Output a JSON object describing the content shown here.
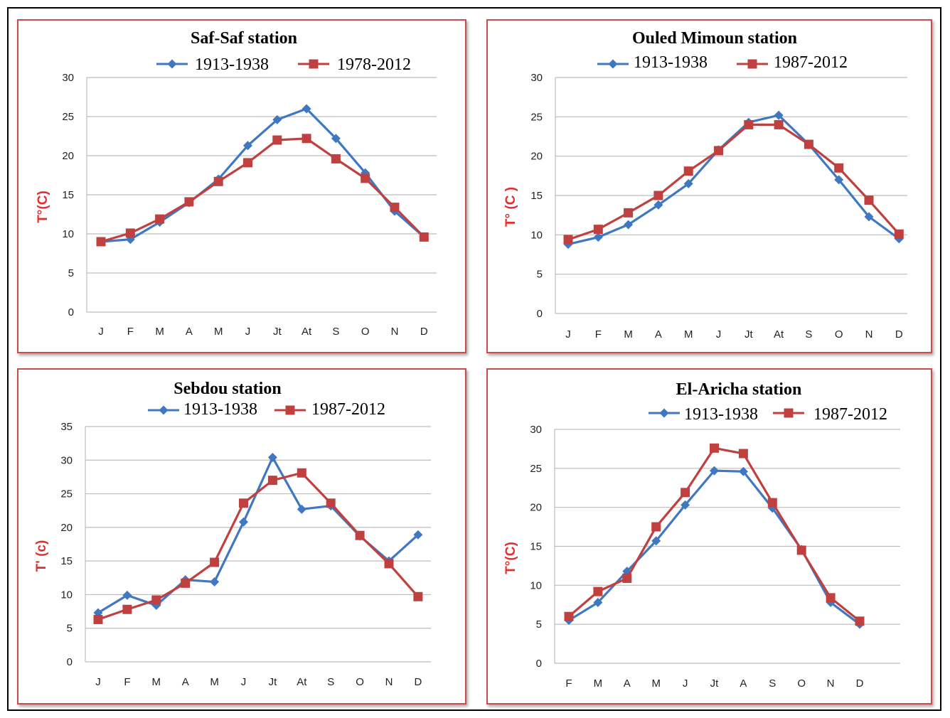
{
  "colors": {
    "series_a": "#3f77c1",
    "series_b": "#c0403f",
    "grid": "#bdbdbd",
    "frame": "#cc4b4b",
    "ylabel": "#e03030"
  },
  "chart_data": [
    {
      "type": "line",
      "title": "Saf-Saf station",
      "ylabel": "T°(C)",
      "ylim": [
        0,
        30
      ],
      "yticks": [
        "0",
        "5",
        "10",
        "15",
        "20",
        "25",
        "30"
      ],
      "categories": [
        "J",
        "F",
        "M",
        "A",
        "M",
        "J",
        "Jt",
        "At",
        "S",
        "O",
        "N",
        "D"
      ],
      "grid": true,
      "legend": "top",
      "series": [
        {
          "name": "1913-1938",
          "marker": "diamond",
          "values": [
            9.0,
            9.3,
            11.5,
            14.0,
            17.0,
            21.3,
            24.6,
            26.0,
            22.2,
            17.8,
            12.9,
            9.6
          ]
        },
        {
          "name": "1978-2012",
          "marker": "square",
          "values": [
            9.0,
            10.1,
            11.9,
            14.1,
            16.7,
            19.1,
            22.0,
            22.2,
            19.6,
            17.1,
            13.4,
            9.6
          ]
        }
      ]
    },
    {
      "type": "line",
      "title": "Ouled Mimoun station",
      "ylabel": "T° (C )",
      "ylim": [
        0,
        30
      ],
      "yticks": [
        "0",
        "5",
        "10",
        "15",
        "20",
        "25",
        "30"
      ],
      "categories": [
        "J",
        "F",
        "M",
        "A",
        "M",
        "J",
        "Jt",
        "At",
        "S",
        "O",
        "N",
        "D"
      ],
      "grid": true,
      "legend": "top",
      "series": [
        {
          "name": "1913-1938",
          "marker": "diamond",
          "values": [
            8.8,
            9.7,
            11.3,
            13.8,
            16.5,
            20.8,
            24.3,
            25.2,
            21.5,
            17.0,
            12.3,
            9.5
          ]
        },
        {
          "name": "1987-2012",
          "marker": "square",
          "values": [
            9.4,
            10.7,
            12.8,
            15.0,
            18.1,
            20.7,
            24.0,
            24.0,
            21.5,
            18.5,
            14.4,
            10.1
          ]
        }
      ]
    },
    {
      "type": "line",
      "title": "Sebdou station",
      "ylabel": "T' (c)",
      "ylim": [
        0,
        35
      ],
      "yticks": [
        "0",
        "5",
        "10",
        "15",
        "20",
        "25",
        "30",
        "35"
      ],
      "categories": [
        "J",
        "F",
        "M",
        "A",
        "M",
        "J",
        "Jt",
        "At",
        "S",
        "O",
        "N",
        "D"
      ],
      "grid": true,
      "legend": "top",
      "series": [
        {
          "name": "1913-1938",
          "marker": "diamond",
          "values": [
            7.3,
            9.9,
            8.4,
            12.2,
            11.9,
            20.8,
            30.4,
            22.7,
            23.2,
            18.7,
            15.0,
            18.9
          ]
        },
        {
          "name": "1987-2012",
          "marker": "square",
          "values": [
            6.3,
            7.8,
            9.2,
            11.7,
            14.8,
            23.6,
            27.0,
            28.1,
            23.6,
            18.8,
            14.6,
            9.7
          ]
        }
      ]
    },
    {
      "type": "line",
      "title": "El-Aricha station",
      "ylabel": "T°(C)",
      "ylim": [
        0,
        30
      ],
      "yticks": [
        "0",
        "5",
        "10",
        "15",
        "20",
        "25",
        "30"
      ],
      "categories": [
        "F",
        "M",
        "A",
        "M",
        "J",
        "Jt",
        "A",
        "S",
        "O",
        "N",
        "D"
      ],
      "grid": true,
      "legend": "top",
      "series": [
        {
          "name": "1913-1938",
          "marker": "diamond",
          "values": [
            5.5,
            7.8,
            11.8,
            15.7,
            20.3,
            24.7,
            24.6,
            19.9,
            14.6,
            7.8,
            5.0
          ]
        },
        {
          "name": "1987-2012",
          "marker": "square",
          "values": [
            6.0,
            9.2,
            10.9,
            17.5,
            21.9,
            27.6,
            26.9,
            20.6,
            14.5,
            8.4,
            5.4
          ]
        }
      ]
    }
  ]
}
